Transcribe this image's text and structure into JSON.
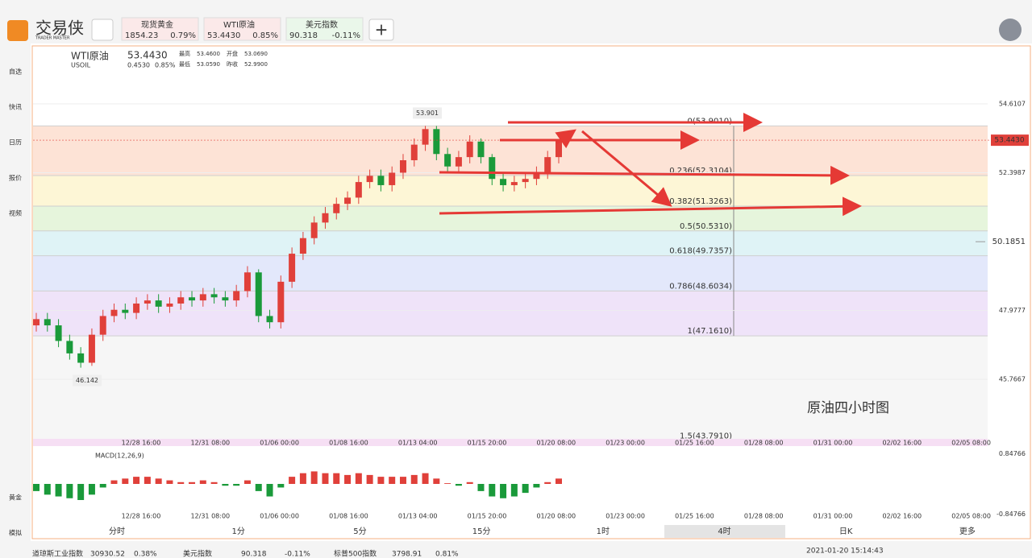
{
  "app": {
    "logo": "交易侠",
    "logo_sub": "TRADER MASTER"
  },
  "tabs": [
    {
      "name": "现货黄金",
      "price": "1854.23",
      "change": "0.79%"
    },
    {
      "name": "WTI原油",
      "price": "53.4430",
      "change": "0.85%"
    },
    {
      "name": "美元指数",
      "price": "90.318",
      "change": "-0.11%"
    }
  ],
  "sidebar": [
    "自选",
    "快讯",
    "日历",
    "报价",
    "视频"
  ],
  "sidebar_bottom": [
    "黄金",
    "模拟"
  ],
  "symbol": {
    "name": "WTI原油",
    "code": "USOIL",
    "price": "53.4430",
    "change": "0.4530",
    "change_pct": "0.85%",
    "stats": [
      [
        "最高",
        "53.4600"
      ],
      [
        "开盘",
        "53.0690"
      ],
      [
        "最低",
        "53.0590"
      ],
      [
        "昨收",
        "52.9900"
      ]
    ]
  },
  "chart_data": {
    "type": "candlestick",
    "ylim": [
      43.78,
      56.47
    ],
    "yticks": [
      54.6107,
      52.3987,
      47.9777,
      45.7667
    ],
    "open": [
      47.5,
      47.7,
      47.5,
      47.0,
      46.6,
      46.3,
      47.2,
      47.8,
      48.0,
      47.9,
      48.2,
      48.3,
      48.1,
      48.2,
      48.4,
      48.3,
      48.5,
      48.4,
      48.3,
      48.6,
      49.2,
      47.8,
      47.6,
      48.9,
      49.8,
      50.3,
      50.8,
      51.1,
      51.4,
      51.6,
      52.1,
      52.3,
      52.0,
      52.4,
      52.8,
      53.3,
      53.8,
      53.0,
      52.6,
      52.9,
      53.4,
      52.9,
      52.2,
      52.0,
      52.1,
      52.2,
      52.4,
      52.9
    ],
    "high": [
      47.9,
      47.9,
      47.7,
      47.2,
      46.8,
      47.4,
      48.0,
      48.2,
      48.2,
      48.4,
      48.5,
      48.5,
      48.4,
      48.6,
      48.6,
      48.7,
      48.7,
      48.6,
      48.8,
      49.4,
      49.3,
      48.0,
      49.1,
      50.0,
      50.5,
      51.0,
      51.3,
      51.6,
      51.8,
      52.3,
      52.5,
      52.5,
      52.6,
      53.0,
      53.5,
      53.901,
      53.9,
      53.2,
      53.1,
      53.6,
      53.5,
      53.0,
      52.4,
      52.3,
      52.4,
      52.6,
      53.1,
      53.46
    ],
    "low": [
      47.3,
      47.3,
      46.8,
      46.4,
      46.142,
      46.2,
      47.0,
      47.6,
      47.7,
      47.7,
      48.0,
      47.9,
      47.9,
      48.0,
      48.1,
      48.1,
      48.2,
      48.1,
      48.1,
      48.4,
      47.6,
      47.4,
      47.4,
      48.7,
      49.6,
      50.1,
      50.6,
      50.9,
      51.2,
      51.4,
      51.9,
      51.8,
      51.8,
      52.2,
      52.6,
      53.1,
      52.8,
      52.4,
      52.4,
      52.7,
      52.7,
      52.0,
      51.8,
      51.8,
      51.9,
      52.0,
      52.2,
      52.7
    ],
    "close": [
      47.7,
      47.5,
      47.0,
      46.6,
      46.3,
      47.2,
      47.8,
      48.0,
      47.9,
      48.2,
      48.3,
      48.1,
      48.2,
      48.4,
      48.3,
      48.5,
      48.4,
      48.3,
      48.6,
      49.2,
      47.8,
      47.6,
      48.9,
      49.8,
      50.3,
      50.8,
      51.1,
      51.4,
      51.6,
      52.1,
      52.3,
      52.0,
      52.4,
      52.8,
      53.3,
      53.8,
      53.0,
      52.6,
      52.9,
      53.4,
      52.9,
      52.2,
      52.0,
      52.1,
      52.2,
      52.4,
      52.9,
      53.44
    ],
    "up_color": "#e0403a",
    "down_color": "#1a9a3a",
    "last_price": {
      "value": 53.443,
      "label": "53.4430"
    },
    "alert": {
      "value": 50.1851,
      "label": "50.1851"
    },
    "annotations": [
      {
        "value": 53.901,
        "label": "53.901"
      },
      {
        "value": 46.142,
        "label": "46.142"
      }
    ],
    "note": "原油四小时图",
    "fib": {
      "levels": [
        {
          "value": 53.901,
          "label": "0(53.9010)"
        },
        {
          "value": 52.3104,
          "label": "0.236(52.3104)"
        },
        {
          "value": 51.3263,
          "label": "0.382(51.3263)"
        },
        {
          "value": 50.531,
          "label": "0.5(50.5310)"
        },
        {
          "value": 49.7357,
          "label": "0.618(49.7357)"
        },
        {
          "value": 48.6034,
          "label": "0.786(48.6034)"
        },
        {
          "value": 47.161,
          "label": "1(47.1610)"
        },
        {
          "value": 43.791,
          "label": "1.5(43.7910)"
        }
      ],
      "band_colors": [
        "#fde3d6",
        "#fdf6d6",
        "#e6f5dc",
        "#dff3f6",
        "#e3e8fb",
        "#efe3f9",
        "#f6f6f6"
      ]
    },
    "dates": [
      "12/28 16:00",
      "12/31 08:00",
      "01/06 00:00",
      "01/08 16:00",
      "01/13 04:00",
      "01/15 20:00",
      "01/20 08:00",
      "01/23 00:00",
      "01/25 16:00",
      "01/28 08:00",
      "01/31 00:00",
      "02/02 16:00",
      "02/05 08:00"
    ],
    "macd": {
      "title": "MACD(12,26,9)",
      "ylim": [
        -0.9,
        0.9
      ],
      "yticks": [
        {
          "value": 0.84766,
          "label": "0.84766"
        },
        {
          "value": -0.84766,
          "label": "-0.84766"
        }
      ],
      "values": [
        -0.2,
        -0.3,
        -0.35,
        -0.4,
        -0.45,
        -0.3,
        -0.1,
        0.1,
        0.15,
        0.2,
        0.2,
        0.15,
        0.1,
        0.05,
        0.05,
        0.1,
        0.05,
        -0.05,
        -0.05,
        0.1,
        -0.2,
        -0.35,
        -0.1,
        0.2,
        0.3,
        0.35,
        0.3,
        0.3,
        0.25,
        0.3,
        0.25,
        0.2,
        0.2,
        0.2,
        0.25,
        0.3,
        0.15,
        0.02,
        -0.05,
        0.05,
        -0.2,
        -0.35,
        -0.4,
        -0.35,
        -0.25,
        -0.1,
        0.05,
        0.15
      ]
    }
  },
  "timeframes": [
    "分时",
    "1分",
    "5分",
    "15分",
    "1时",
    "4时",
    "日K",
    "更多"
  ],
  "ticker": [
    {
      "name": "道琼斯工业指数",
      "price": "30930.52",
      "change": "0.38%"
    },
    {
      "name": "美元指数",
      "price": "90.318",
      "change": "-0.11%"
    },
    {
      "name": "标普500指数",
      "price": "3798.91",
      "change": "0.81%"
    }
  ],
  "timestamp": "2021-01-20 15:14:43"
}
